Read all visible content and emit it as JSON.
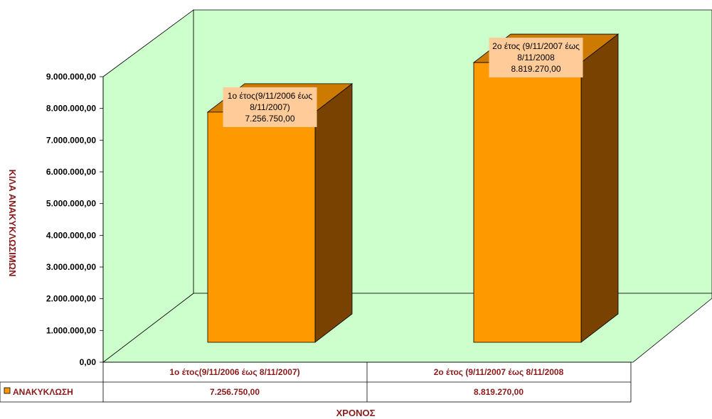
{
  "chart_data": {
    "type": "bar",
    "categories": [
      "1ο έτος(9/11/2006 έως 8/11/2007)",
      "2ο έτος (9/11/2007 έως 8/11/2008"
    ],
    "series": [
      {
        "name": "ΑΝΑΚΥΚΛΩΣΗ",
        "values": [
          7256750,
          8819270
        ]
      }
    ],
    "value_labels": [
      "7.256.750,00",
      "8.819.270,00"
    ],
    "data_labels": [
      [
        "1ο έτος(9/11/2006 έως",
        "8/11/2007)",
        "7.256.750,00"
      ],
      [
        "2ο έτος (9/11/2007 έως",
        "8/11/2008",
        "8.819.270,00"
      ]
    ],
    "yticks": [
      "0,00",
      "1.000.000,00",
      "2.000.000,00",
      "3.000.000,00",
      "4.000.000,00",
      "5.000.000,00",
      "6.000.000,00",
      "7.000.000,00",
      "8.000.000,00",
      "9.000.000,00"
    ],
    "ylim": [
      0,
      9000000
    ],
    "xlabel": "ΧΡΟΝΟΣ",
    "ylabel": "ΚΙΛΑ ΑΝΑΚΥΚΛΩΣΙΜΩΝ",
    "grid": false,
    "legend": "data-table",
    "colors": {
      "wall": "#ccffcc",
      "bar_front": "#ff9900",
      "bar_side": "#7a4200",
      "bar_top": "#cc7a00",
      "label_box": "#ffcc99",
      "axis_text": "#8b1a1a"
    }
  }
}
